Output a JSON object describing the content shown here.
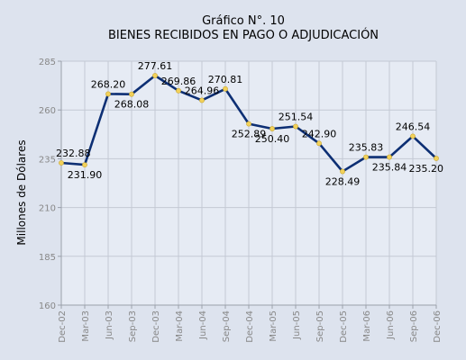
{
  "chart_data": {
    "type": "line",
    "title_line1": "Gráfico N°. 10",
    "title_line2": "BIENES RECIBIDOS EN PAGO O ADJUDICACIÓN",
    "xlabel": "",
    "ylabel": "Millones de Dólares",
    "ylim": [
      160,
      285
    ],
    "yticks": [
      "160",
      "185",
      "210",
      "235",
      "260",
      "285"
    ],
    "categories": [
      "Dec-02",
      "Mar-03",
      "Jun-03",
      "Sep-03",
      "Dec-03",
      "Mar-04",
      "Jun-04",
      "Sep-04",
      "Dec-04",
      "Mar-05",
      "Jun-05",
      "Sep-05",
      "Dec-05",
      "Mar-06",
      "Jun-06",
      "Sep-06",
      "Dec-06"
    ],
    "values": [
      232.88,
      231.9,
      268.2,
      268.08,
      277.61,
      269.86,
      264.96,
      270.81,
      252.89,
      250.4,
      251.54,
      242.9,
      228.49,
      235.83,
      235.84,
      246.54,
      235.2
    ],
    "value_labels": [
      "232.88",
      "231.90",
      "268.20",
      "268.08",
      "277.61",
      "269.86",
      "264.96",
      "270.81",
      "252.89",
      "250.40",
      "251.54",
      "242.90",
      "228.49",
      "235.83",
      "235.84",
      "246.54",
      "235.20"
    ],
    "grid": true,
    "line_color": "#0d2f74",
    "marker_color": "#f2d15a"
  }
}
